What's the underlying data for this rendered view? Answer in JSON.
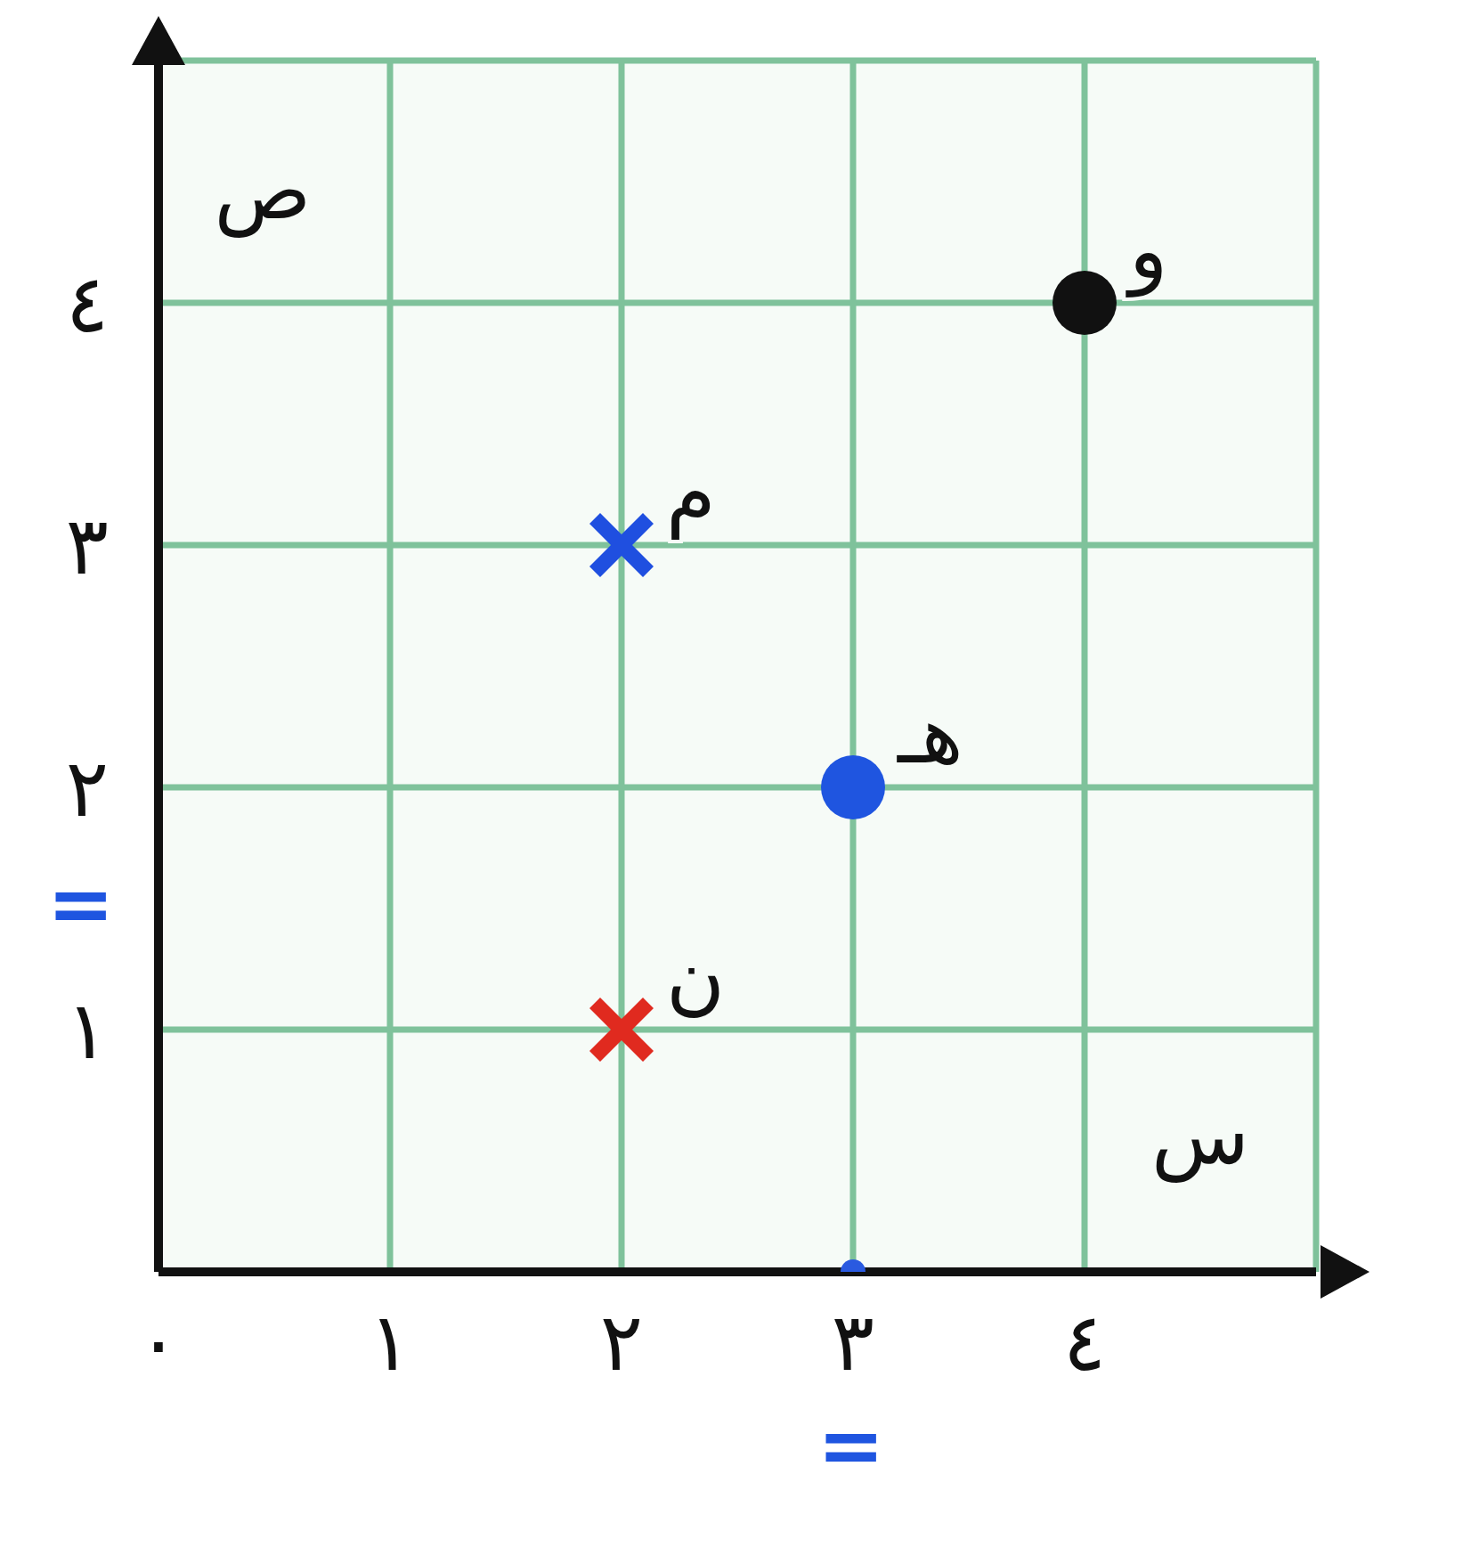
{
  "chart_data": {
    "type": "scatter",
    "xlabel": "س",
    "ylabel": "ص",
    "xlim": [
      0,
      5
    ],
    "ylim": [
      0,
      5
    ],
    "xticks": [
      {
        "value": 0,
        "label": "٠"
      },
      {
        "value": 1,
        "label": "١"
      },
      {
        "value": 2,
        "label": "٢"
      },
      {
        "value": 3,
        "label": "٣"
      },
      {
        "value": 4,
        "label": "٤"
      },
      {
        "value": 5,
        "label": null
      }
    ],
    "yticks": [
      {
        "value": 1,
        "label": "١"
      },
      {
        "value": 2,
        "label": "٢"
      },
      {
        "value": 3,
        "label": "٣"
      },
      {
        "value": 4,
        "label": "٤"
      },
      {
        "value": 5,
        "label": null
      }
    ],
    "grid": true,
    "series": [
      {
        "name": "و",
        "color": "#111111",
        "marker": "circle",
        "x": [
          4
        ],
        "values": [
          4
        ]
      },
      {
        "name": "م",
        "color": "#1f4fe0",
        "marker": "cross",
        "x": [
          2
        ],
        "values": [
          3
        ]
      },
      {
        "name": "هـ",
        "color": "#1f55e0",
        "marker": "circle",
        "x": [
          3
        ],
        "values": [
          2
        ]
      },
      {
        "name": "ن",
        "color": "#e02a1f",
        "marker": "cross",
        "x": [
          2
        ],
        "values": [
          1
        ]
      },
      {
        "color": "#2a5ae0",
        "marker": "circle",
        "x": [
          3
        ],
        "values": [
          0
        ]
      }
    ],
    "annotations": [
      "=",
      "="
    ]
  }
}
